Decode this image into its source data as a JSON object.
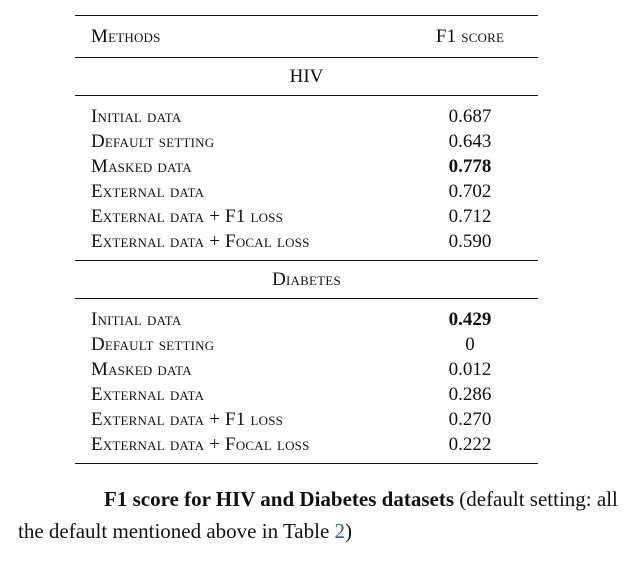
{
  "table": {
    "headers": {
      "method": "Methods",
      "score": "F1 score"
    },
    "sections": [
      {
        "name": "HIV",
        "rows": [
          {
            "method": "Initial data",
            "score": "0.687",
            "bold": false
          },
          {
            "method": "Default setting",
            "score": "0.643",
            "bold": false
          },
          {
            "method": "Masked data",
            "score": "0.778",
            "bold": true
          },
          {
            "method": "External data",
            "score": "0.702",
            "bold": false
          },
          {
            "method": "External data + F1 loss",
            "score": "0.712",
            "bold": false
          },
          {
            "method": "External data + Focal loss",
            "score": "0.590",
            "bold": false
          }
        ]
      },
      {
        "name": "Diabetes",
        "rows": [
          {
            "method": "Initial data",
            "score": "0.429",
            "bold": true
          },
          {
            "method": "Default setting",
            "score": "0",
            "bold": false
          },
          {
            "method": "Masked data",
            "score": "0.012",
            "bold": false
          },
          {
            "method": "External data",
            "score": "0.286",
            "bold": false
          },
          {
            "method": "External data + F1 loss",
            "score": "0.270",
            "bold": false
          },
          {
            "method": "External data + Focal loss",
            "score": "0.222",
            "bold": false
          }
        ]
      }
    ]
  },
  "caption": {
    "bold_text": "F1 score for HIV and Diabetes datasets",
    "text_before_ref": " (default setting: all the default mentioned above in Table ",
    "ref": "2",
    "text_after_ref": ")"
  },
  "colors": {
    "text": "#111111",
    "link": "#2255cc",
    "background": "#ffffff"
  }
}
